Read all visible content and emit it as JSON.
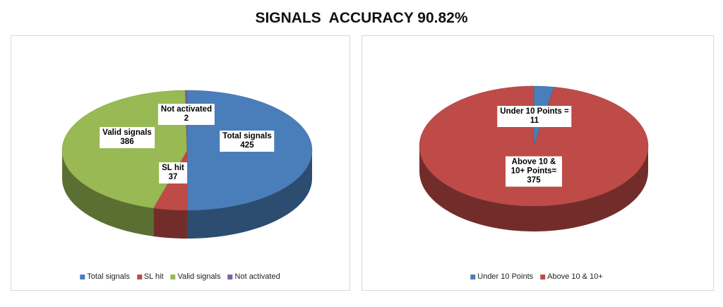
{
  "page_title": "SIGNALS  ACCURACY 90.82%",
  "chart_data": [
    {
      "type": "pie",
      "categories": [
        "Total signals",
        "SL hit",
        "Valid signals",
        "Not activated"
      ],
      "values": [
        425,
        37,
        386,
        2
      ],
      "colors": [
        "#4a7ebb",
        "#be4b48",
        "#98b954",
        "#7d60a0"
      ],
      "data_label_names": [
        "Total signals",
        "SL hit",
        "Valid signals",
        "Not activated"
      ]
    },
    {
      "type": "pie",
      "categories": [
        "Under 10 Points",
        "Above 10 & 10+"
      ],
      "values": [
        11,
        375
      ],
      "colors": [
        "#4a7ebb",
        "#be4b48"
      ],
      "data_label_names": [
        "Under 10 Points =",
        "Above 10 & 10+ Points="
      ]
    }
  ]
}
